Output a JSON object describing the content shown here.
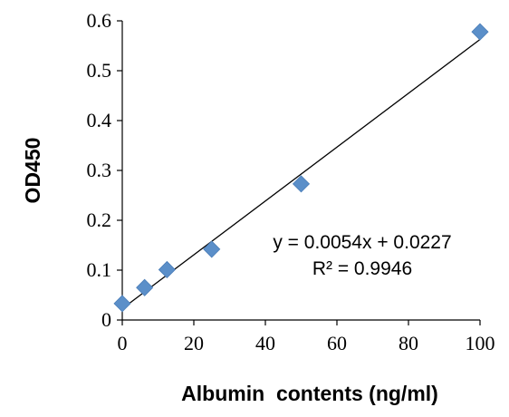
{
  "chart_data": {
    "type": "scatter",
    "title": "",
    "xlabel": "Albumin  contents (ng/ml)",
    "ylabel": "OD450",
    "xlim": [
      0,
      100
    ],
    "ylim": [
      0,
      0.6
    ],
    "x_ticks": [
      "0",
      "20",
      "40",
      "60",
      "80",
      "100"
    ],
    "y_ticks": [
      "0",
      "0.1",
      "0.2",
      "0.3",
      "0.4",
      "0.5",
      "0.6"
    ],
    "grid": false,
    "legend": "none",
    "marker": "diamond",
    "marker_color": "#5b8fc9",
    "series": [
      {
        "x": [
          0,
          6.25,
          12.5,
          25,
          50,
          100
        ],
        "y": [
          0.033,
          0.065,
          0.101,
          0.142,
          0.273,
          0.578
        ]
      }
    ],
    "trendline": {
      "type": "linear",
      "slope": 0.0054,
      "intercept": 0.0227,
      "equation": "y = 0.0054x + 0.0227",
      "r_squared": "R² = 0.9946"
    }
  }
}
